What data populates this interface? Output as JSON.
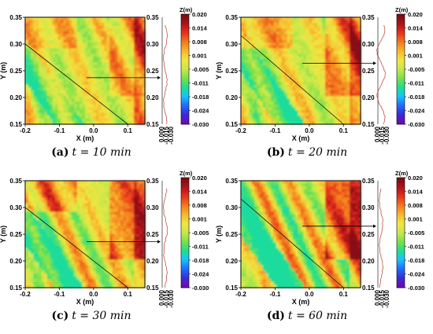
{
  "chart_data": [
    {
      "type": "heatmap",
      "panel": "a",
      "caption_letter": "(a)",
      "caption_rest": "t = 10 min",
      "xlabel": "X (m)",
      "ylabel": "Y (m)",
      "xlim": [
        -0.2,
        0.15
      ],
      "ylim": [
        0.15,
        0.35
      ],
      "xticks": [
        "-0.2",
        "-0.1",
        "0.0",
        "0.1"
      ],
      "yticks": [
        "0.15",
        "0.20",
        "0.25",
        "0.30",
        "0.35"
      ],
      "y2ticks": [
        "0.15",
        "0.20",
        "0.25",
        "0.30",
        "0.35"
      ],
      "profile_ticks": [
        "0.000",
        "-0.015",
        "-0.030"
      ],
      "arrow_y": 0.237,
      "features": {
        "band_intercept": 0.1,
        "red_left_top": true,
        "red_right": true,
        "intensity": 0.25
      }
    },
    {
      "type": "heatmap",
      "panel": "b",
      "caption_letter": "(b)",
      "caption_rest": "t = 20 min",
      "xlabel": "X (m)",
      "ylabel": "Y (m)",
      "xlim": [
        -0.2,
        0.15
      ],
      "ylim": [
        0.15,
        0.35
      ],
      "xticks": [
        "-0.2",
        "-0.1",
        "0.0",
        "0.1"
      ],
      "yticks": [
        "0.15",
        "0.20",
        "0.25",
        "0.30",
        "0.35"
      ],
      "y2ticks": [
        "0.15",
        "0.20",
        "0.25",
        "0.30",
        "0.35"
      ],
      "profile_ticks": [
        "0.000",
        "-0.015",
        "-0.030"
      ],
      "arrow_y": 0.264,
      "features": {
        "band_intercept": 0.14,
        "red_left_top": true,
        "red_right": true,
        "intensity": 0.55
      }
    },
    {
      "type": "heatmap",
      "panel": "c",
      "caption_letter": "(c)",
      "caption_rest": "t = 30 min",
      "xlabel": "X (m)",
      "ylabel": "Y (m)",
      "xlim": [
        -0.2,
        0.15
      ],
      "ylim": [
        0.15,
        0.35
      ],
      "xticks": [
        "-0.2",
        "-0.1",
        "0.0",
        "0.1"
      ],
      "yticks": [
        "0.15",
        "0.20",
        "0.25",
        "0.30",
        "0.35"
      ],
      "y2ticks": [
        "0.15",
        "0.20",
        "0.25",
        "0.30",
        "0.35"
      ],
      "profile_ticks": [
        "0.000",
        "-0.015",
        "-0.030"
      ],
      "arrow_y": 0.236,
      "features": {
        "band_intercept": 0.1,
        "red_left_top": true,
        "red_right": true,
        "intensity": 0.75
      }
    },
    {
      "type": "heatmap",
      "panel": "d",
      "caption_letter": "(d)",
      "caption_rest": "t = 60 min",
      "xlabel": "X (m)",
      "ylabel": "Y (m)",
      "xlim": [
        -0.2,
        0.15
      ],
      "ylim": [
        0.15,
        0.35
      ],
      "xticks": [
        "-0.2",
        "-0.1",
        "0.0",
        "0.1"
      ],
      "yticks": [
        "0.15",
        "0.20",
        "0.25",
        "0.30",
        "0.35"
      ],
      "y2ticks": [
        "0.15",
        "0.20",
        "0.25",
        "0.30",
        "0.35"
      ],
      "profile_ticks": [
        "0.000",
        "-0.015",
        "-0.030"
      ],
      "arrow_y": 0.265,
      "features": {
        "band_intercept": 0.14,
        "red_left_top": false,
        "red_right": true,
        "intensity": 0.95
      }
    }
  ],
  "colorbar": {
    "title": "Z(m)",
    "ticks": [
      "0.020",
      "0.014",
      "0.008",
      "0.001",
      "-0.005",
      "-0.011",
      "-0.018",
      "-0.024",
      "-0.030"
    ],
    "range": [
      -0.03,
      0.02
    ],
    "colors": [
      "#6a0dad",
      "#3b2bd9",
      "#1f6fff",
      "#17c4ff",
      "#1fe08a",
      "#7be04a",
      "#c8e84a",
      "#f1e640",
      "#f7b82d",
      "#f27b1e",
      "#e8331a",
      "#b0141a",
      "#7a0c14"
    ]
  }
}
